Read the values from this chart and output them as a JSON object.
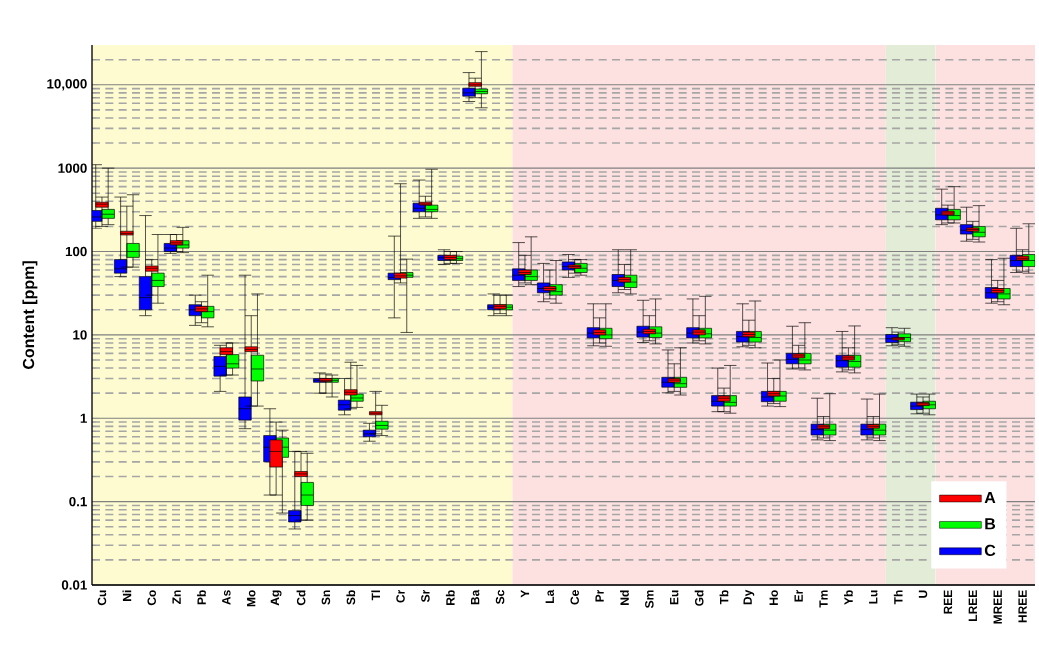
{
  "chart_data": {
    "type": "box",
    "ylabel": "Content [ppm]",
    "categories": [
      "Cu",
      "Ni",
      "Co",
      "Zn",
      "Pb",
      "As",
      "Mo",
      "Ag",
      "Cd",
      "Sn",
      "Sb",
      "Tl",
      "Cr",
      "Sr",
      "Rb",
      "Ba",
      "Sc",
      "Y",
      "La",
      "Ce",
      "Pr",
      "Nd",
      "Sm",
      "Eu",
      "Gd",
      "Tb",
      "Dy",
      "Ho",
      "Er",
      "Tm",
      "Yb",
      "Lu",
      "Th",
      "U",
      "REE",
      "LREE",
      "MREE",
      "HREE"
    ],
    "log": true,
    "ylim": [
      0.01,
      30000
    ],
    "yticks": [
      0.01,
      0.1,
      1,
      10,
      100,
      1000,
      {
        "value": 10000,
        "label": "10,000"
      }
    ],
    "grid": "y",
    "legend": "bottom right",
    "bands": [
      {
        "axis": "x",
        "from": "Cu",
        "to": "Sc",
        "color": "#fdfbcf"
      },
      {
        "axis": "x",
        "from": "Y",
        "to": "Lu",
        "color": "#fde0e0"
      },
      {
        "axis": "x",
        "from": "Th",
        "to": "U",
        "color": "#e3ecd6"
      },
      {
        "axis": "x",
        "from": "REE",
        "to": "HREE",
        "color": "#fde0e0"
      }
    ],
    "series": [
      {
        "name": "A",
        "color": "#ff0000",
        "boxes": [
          {
            "low": 200,
            "q1": 340,
            "median": 370,
            "q3": 390,
            "high": 450
          },
          {
            "low": 65,
            "q1": 158,
            "median": 165,
            "q3": 175,
            "high": 350
          },
          {
            "low": 30,
            "q1": 58,
            "median": 63,
            "q3": 67,
            "high": 80
          },
          {
            "low": 100,
            "q1": 120,
            "median": 127,
            "q3": 135,
            "high": 160
          },
          {
            "low": 14,
            "q1": 19,
            "median": 20.5,
            "q3": 22,
            "high": 25
          },
          {
            "low": 3.3,
            "q1": 5.8,
            "median": 6.3,
            "q3": 7,
            "high": 8
          },
          {
            "low": 1.4,
            "q1": 6.3,
            "median": 6.7,
            "q3": 7.2,
            "high": 17
          },
          {
            "low": 0.12,
            "q1": 0.26,
            "median": 0.4,
            "q3": 0.55,
            "high": 0.9
          },
          {
            "low": 0.06,
            "q1": 0.2,
            "median": 0.215,
            "q3": 0.23,
            "high": 0.4
          },
          {
            "low": 2.0,
            "q1": 2.75,
            "median": 2.85,
            "q3": 3.0,
            "high": 3.4
          },
          {
            "low": 1.3,
            "q1": 1.9,
            "median": 2.05,
            "q3": 2.2,
            "high": 4.7
          },
          {
            "low": 0.65,
            "q1": 1.1,
            "median": 1.15,
            "q3": 1.2,
            "high": 2.1
          },
          {
            "low": 42,
            "q1": 48,
            "median": 51,
            "q3": 55,
            "high": 650
          },
          {
            "low": 260,
            "q1": 360,
            "median": 372,
            "q3": 390,
            "high": 460
          },
          {
            "low": 72,
            "q1": 80,
            "median": 85,
            "q3": 90,
            "high": 100
          },
          {
            "low": 7000,
            "q1": 9600,
            "median": 10000,
            "q3": 10600,
            "high": 12000
          },
          {
            "low": 18,
            "q1": 20.5,
            "median": 22,
            "q3": 23,
            "high": 30
          },
          {
            "low": 42,
            "q1": 53,
            "median": 56,
            "q3": 60,
            "high": 90
          },
          {
            "low": 27,
            "q1": 34,
            "median": 36,
            "q3": 38,
            "high": 60
          },
          {
            "low": 55,
            "q1": 63,
            "median": 66,
            "q3": 69,
            "high": 80
          },
          {
            "low": 8,
            "q1": 10,
            "median": 10.7,
            "q3": 11.5,
            "high": 16
          },
          {
            "low": 35,
            "q1": 43,
            "median": 46,
            "q3": 49,
            "high": 70
          },
          {
            "low": 8.5,
            "q1": 10.3,
            "median": 11,
            "q3": 11.7,
            "high": 17
          },
          {
            "low": 2.1,
            "q1": 2.7,
            "median": 2.87,
            "q3": 3.0,
            "high": 4.5
          },
          {
            "low": 8.5,
            "q1": 10,
            "median": 10.8,
            "q3": 11.5,
            "high": 17
          },
          {
            "low": 1.2,
            "q1": 1.6,
            "median": 1.74,
            "q3": 1.85,
            "high": 2.3
          },
          {
            "low": 7.5,
            "q1": 9.5,
            "median": 10.1,
            "q3": 10.8,
            "high": 15
          },
          {
            "low": 1.5,
            "q1": 1.85,
            "median": 1.97,
            "q3": 2.1,
            "high": 3
          },
          {
            "low": 4,
            "q1": 5.3,
            "median": 5.6,
            "q3": 5.9,
            "high": 7.5
          },
          {
            "low": 0.58,
            "q1": 0.75,
            "median": 0.79,
            "q3": 0.83,
            "high": 1.05
          },
          {
            "low": 3.8,
            "q1": 5,
            "median": 5.3,
            "q3": 5.6,
            "high": 7
          },
          {
            "low": 0.58,
            "q1": 0.76,
            "median": 0.8,
            "q3": 0.84,
            "high": 1.05
          },
          {
            "low": 7.6,
            "q1": 8.7,
            "median": 9,
            "q3": 9.3,
            "high": 10.8
          },
          {
            "low": 1.15,
            "q1": 1.42,
            "median": 1.49,
            "q3": 1.55,
            "high": 1.8
          },
          {
            "low": 220,
            "q1": 275,
            "median": 290,
            "q3": 305,
            "high": 360
          },
          {
            "low": 140,
            "q1": 175,
            "median": 184,
            "q3": 192,
            "high": 230
          },
          {
            "low": 25,
            "q1": 32,
            "median": 34,
            "q3": 36,
            "high": 45
          },
          {
            "low": 58,
            "q1": 79,
            "median": 83,
            "q3": 88,
            "high": 105
          }
        ]
      },
      {
        "name": "B",
        "color": "#00ff00",
        "boxes": [
          {
            "low": 210,
            "q1": 250,
            "median": 280,
            "q3": 320,
            "high": 1000
          },
          {
            "low": 65,
            "q1": 85,
            "median": 100,
            "q3": 125,
            "high": 480
          },
          {
            "low": 24,
            "q1": 38,
            "median": 45,
            "q3": 55,
            "high": 160
          },
          {
            "low": 97,
            "q1": 110,
            "median": 120,
            "q3": 135,
            "high": 195
          },
          {
            "low": 12.5,
            "q1": 16,
            "median": 19,
            "q3": 22,
            "high": 52
          },
          {
            "low": 3.3,
            "q1": 4,
            "median": 4.5,
            "q3": 5.8,
            "high": 8
          },
          {
            "low": 1.4,
            "q1": 2.8,
            "median": 3.9,
            "q3": 5.7,
            "high": 31
          },
          {
            "low": 0.073,
            "q1": 0.34,
            "median": 0.45,
            "q3": 0.58,
            "high": 0.72
          },
          {
            "low": 0.06,
            "q1": 0.09,
            "median": 0.12,
            "q3": 0.17,
            "high": 0.38
          },
          {
            "low": 1.8,
            "q1": 2.7,
            "median": 2.85,
            "q3": 3.0,
            "high": 3.3
          },
          {
            "low": 1.35,
            "q1": 1.6,
            "median": 1.75,
            "q3": 1.95,
            "high": 4.3
          },
          {
            "low": 0.62,
            "q1": 0.74,
            "median": 0.82,
            "q3": 0.92,
            "high": 1.43
          },
          {
            "low": 10.7,
            "q1": 49,
            "median": 52,
            "q3": 56,
            "high": 81
          },
          {
            "low": 250,
            "q1": 300,
            "median": 320,
            "q3": 360,
            "high": 970
          },
          {
            "low": 72,
            "q1": 78,
            "median": 82,
            "q3": 88,
            "high": 100
          },
          {
            "low": 5300,
            "q1": 7800,
            "median": 8300,
            "q3": 8900,
            "high": 25000
          },
          {
            "low": 17,
            "q1": 20,
            "median": 21.5,
            "q3": 23,
            "high": 30
          },
          {
            "low": 40,
            "q1": 45,
            "median": 50,
            "q3": 60,
            "high": 150
          },
          {
            "low": 24,
            "q1": 30,
            "median": 33,
            "q3": 40,
            "high": 78
          },
          {
            "low": 52,
            "q1": 56,
            "median": 63,
            "q3": 72,
            "high": 80
          },
          {
            "low": 7.3,
            "q1": 9,
            "median": 10,
            "q3": 12,
            "high": 23.6
          },
          {
            "low": 31,
            "q1": 37,
            "median": 43,
            "q3": 52,
            "high": 105
          },
          {
            "low": 7.8,
            "q1": 9.3,
            "median": 10.5,
            "q3": 12.5,
            "high": 27
          },
          {
            "low": 1.9,
            "q1": 2.35,
            "median": 2.6,
            "q3": 3.1,
            "high": 7
          },
          {
            "low": 7.8,
            "q1": 9.2,
            "median": 10.3,
            "q3": 12,
            "high": 29
          },
          {
            "low": 1.15,
            "q1": 1.4,
            "median": 1.55,
            "q3": 1.87,
            "high": 4.3
          },
          {
            "low": 7,
            "q1": 8.2,
            "median": 9.3,
            "q3": 11,
            "high": 25.5
          },
          {
            "low": 1.38,
            "q1": 1.6,
            "median": 1.85,
            "q3": 2.1,
            "high": 5
          },
          {
            "low": 3.8,
            "q1": 4.5,
            "median": 5,
            "q3": 6,
            "high": 14
          },
          {
            "low": 0.54,
            "q1": 0.63,
            "median": 0.72,
            "q3": 0.85,
            "high": 1.97
          },
          {
            "low": 3.5,
            "q1": 4.1,
            "median": 4.8,
            "q3": 5.7,
            "high": 12.8
          },
          {
            "low": 0.54,
            "q1": 0.63,
            "median": 0.72,
            "q3": 0.85,
            "high": 1.95
          },
          {
            "low": 7.3,
            "q1": 8.3,
            "median": 9.3,
            "q3": 10.3,
            "high": 12
          },
          {
            "low": 1.1,
            "q1": 1.3,
            "median": 1.45,
            "q3": 1.6,
            "high": 1.95
          },
          {
            "low": 220,
            "q1": 240,
            "median": 270,
            "q3": 320,
            "high": 600
          },
          {
            "low": 130,
            "q1": 150,
            "median": 170,
            "q3": 200,
            "high": 355
          },
          {
            "low": 23,
            "q1": 27,
            "median": 31,
            "q3": 36,
            "high": 83
          },
          {
            "low": 55,
            "q1": 66,
            "median": 78,
            "q3": 92,
            "high": 215
          }
        ]
      },
      {
        "name": "C",
        "color": "#0000ff",
        "boxes": [
          {
            "low": 190,
            "q1": 230,
            "median": 260,
            "q3": 310,
            "high": 1100
          },
          {
            "low": 50,
            "q1": 55,
            "median": 62,
            "q3": 80,
            "high": 450
          },
          {
            "low": 17,
            "q1": 20,
            "median": 28,
            "q3": 50,
            "high": 270
          },
          {
            "low": 95,
            "q1": 100,
            "median": 110,
            "q3": 125,
            "high": 160
          },
          {
            "low": 13,
            "q1": 17,
            "median": 20,
            "q3": 23,
            "high": 30
          },
          {
            "low": 2.1,
            "q1": 3.2,
            "median": 4.2,
            "q3": 5.5,
            "high": 7.5
          },
          {
            "low": 0.75,
            "q1": 0.95,
            "median": 1.3,
            "q3": 1.8,
            "high": 52
          },
          {
            "low": 0.12,
            "q1": 0.3,
            "median": 0.45,
            "q3": 0.62,
            "high": 1.3
          },
          {
            "low": 0.047,
            "q1": 0.057,
            "median": 0.068,
            "q3": 0.078,
            "high": 0.4
          },
          {
            "low": 2.0,
            "q1": 2.7,
            "median": 2.85,
            "q3": 3.0,
            "high": 3.5
          },
          {
            "low": 1.1,
            "q1": 1.25,
            "median": 1.45,
            "q3": 1.65,
            "high": 3.0
          },
          {
            "low": 0.53,
            "q1": 0.6,
            "median": 0.65,
            "q3": 0.72,
            "high": 0.87
          },
          {
            "low": 16,
            "q1": 46,
            "median": 49,
            "q3": 55,
            "high": 153
          },
          {
            "low": 250,
            "q1": 300,
            "median": 330,
            "q3": 380,
            "high": 720
          },
          {
            "low": 70,
            "q1": 78,
            "median": 84,
            "q3": 90,
            "high": 105
          },
          {
            "low": 6300,
            "q1": 7300,
            "median": 8000,
            "q3": 9100,
            "high": 14000
          },
          {
            "low": 17,
            "q1": 20,
            "median": 21.5,
            "q3": 23,
            "high": 31
          },
          {
            "low": 38,
            "q1": 45,
            "median": 52,
            "q3": 62,
            "high": 128
          },
          {
            "low": 25,
            "q1": 32,
            "median": 36,
            "q3": 42,
            "high": 72
          },
          {
            "low": 49,
            "q1": 60,
            "median": 66,
            "q3": 75,
            "high": 92
          },
          {
            "low": 7.4,
            "q1": 9.2,
            "median": 10.5,
            "q3": 12.2,
            "high": 23.6
          },
          {
            "low": 32,
            "q1": 38,
            "median": 45,
            "q3": 53,
            "high": 105
          },
          {
            "low": 8.1,
            "q1": 9.4,
            "median": 10.8,
            "q3": 12.7,
            "high": 26
          },
          {
            "low": 2.02,
            "q1": 2.36,
            "median": 2.7,
            "q3": 3.1,
            "high": 6.6
          },
          {
            "low": 8,
            "q1": 9.2,
            "median": 10.5,
            "q3": 12.2,
            "high": 27
          },
          {
            "low": 1.2,
            "q1": 1.4,
            "median": 1.6,
            "q3": 1.87,
            "high": 4
          },
          {
            "low": 7.2,
            "q1": 8.2,
            "median": 9.5,
            "q3": 11,
            "high": 23.6
          },
          {
            "low": 1.4,
            "q1": 1.58,
            "median": 1.8,
            "q3": 2.1,
            "high": 4.6
          },
          {
            "low": 3.9,
            "q1": 4.5,
            "median": 5.1,
            "q3": 6,
            "high": 12.7
          },
          {
            "low": 0.55,
            "q1": 0.63,
            "median": 0.73,
            "q3": 0.85,
            "high": 1.74
          },
          {
            "low": 3.6,
            "q1": 4.1,
            "median": 4.9,
            "q3": 5.7,
            "high": 11
          },
          {
            "low": 0.55,
            "q1": 0.63,
            "median": 0.73,
            "q3": 0.85,
            "high": 1.7
          },
          {
            "low": 7.4,
            "q1": 8.1,
            "median": 9,
            "q3": 10.1,
            "high": 12.2
          },
          {
            "low": 1.13,
            "q1": 1.27,
            "median": 1.4,
            "q3": 1.56,
            "high": 1.95
          },
          {
            "low": 210,
            "q1": 240,
            "median": 275,
            "q3": 330,
            "high": 560
          },
          {
            "low": 133,
            "q1": 162,
            "median": 180,
            "q3": 210,
            "high": 340
          },
          {
            "low": 24,
            "q1": 27.5,
            "median": 32,
            "q3": 37,
            "high": 80
          },
          {
            "low": 56,
            "q1": 66,
            "median": 78,
            "q3": 90,
            "high": 190
          }
        ]
      }
    ]
  }
}
